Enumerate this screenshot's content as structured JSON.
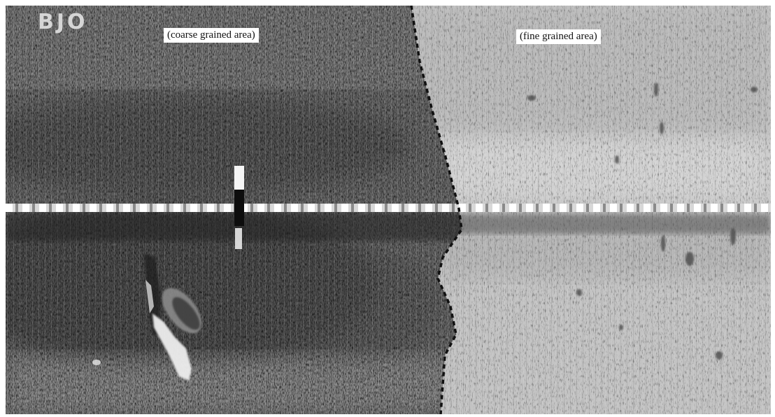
{
  "image": {
    "watermark": "BJO",
    "labels": {
      "coarse": "(coarse grained area)",
      "fine": "(fine grained area)"
    },
    "colors": {
      "coarse_seabed": "#5e5e5e",
      "fine_seabed": "#c9c9c9",
      "boundary_line": "#111111",
      "nadir_line": "#f2f2f2"
    }
  }
}
